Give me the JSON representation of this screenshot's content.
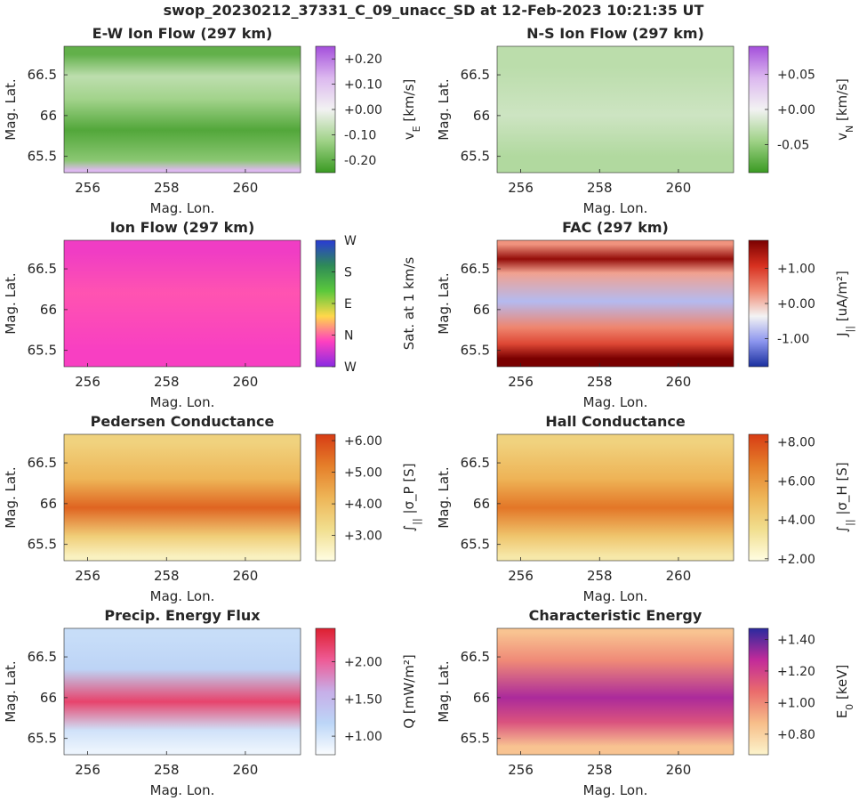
{
  "figure_title": "swop_20230212_37331_C_09_unacc_SD at 12-Feb-2023 10:21:35 UT",
  "chart_data": [
    {
      "type": "heatmap",
      "id": "ew",
      "title": "E-W Ion Flow (297 km)",
      "xlabel": "Mag. Lon.",
      "ylabel": "Mag. Lat.",
      "xticks": [
        "256",
        "258",
        "260"
      ],
      "yticks": [
        "66.5",
        "66",
        "65.5"
      ],
      "xtick_values": [
        256,
        258,
        260
      ],
      "ytick_values": [
        66.5,
        66,
        65.5
      ],
      "xlim": [
        255.4,
        261.4
      ],
      "ylim": [
        65.3,
        66.85
      ],
      "colorbar": {
        "label": "v_E [km/s]",
        "label_main": "v",
        "label_sub": "E",
        "label_rest": " [km/s]",
        "ticks": [
          "+0.20",
          "+0.10",
          "+0.00",
          "-0.10",
          "-0.20"
        ],
        "tick_values": [
          0.2,
          0.1,
          0.0,
          -0.1,
          -0.2
        ],
        "range": [
          -0.25,
          0.25
        ],
        "colors": [
          "#3a9a22",
          "#9fd287",
          "#f2f2f2",
          "#dcb8ef",
          "#a44fdb"
        ]
      },
      "field": {
        "background": "#74b957",
        "bands": [
          {
            "lat": 66.75,
            "value": -0.2
          },
          {
            "lat": 66.48,
            "value": -0.08
          },
          {
            "lat": 66.2,
            "value": -0.12
          },
          {
            "lat": 65.82,
            "value": -0.22
          },
          {
            "lat": 65.45,
            "value": -0.15
          },
          {
            "lat": 65.33,
            "value": 0.12
          }
        ]
      }
    },
    {
      "type": "heatmap",
      "id": "ns",
      "title": "N-S Ion Flow (297 km)",
      "xlabel": "Mag. Lon.",
      "ylabel": "Mag. Lat.",
      "xticks": [
        "256",
        "258",
        "260"
      ],
      "yticks": [
        "66.5",
        "66",
        "65.5"
      ],
      "xtick_values": [
        256,
        258,
        260
      ],
      "ytick_values": [
        66.5,
        66,
        65.5
      ],
      "xlim": [
        255.4,
        261.4
      ],
      "ylim": [
        65.3,
        66.85
      ],
      "colorbar": {
        "label": "v_N [km/s]",
        "label_main": "v",
        "label_sub": "N",
        "label_rest": " [km/s]",
        "ticks": [
          "+0.05",
          "+0.00",
          "-0.05"
        ],
        "tick_values": [
          0.05,
          0.0,
          -0.05
        ],
        "range": [
          -0.09,
          0.09
        ],
        "colors": [
          "#3a9a22",
          "#9fd287",
          "#f2f2f2",
          "#dcb8ef",
          "#a44fdb"
        ]
      },
      "field": {
        "background": "#cfe5c3",
        "bands": [
          {
            "lat": 66.6,
            "value": -0.03
          },
          {
            "lat": 66.0,
            "value": -0.02
          },
          {
            "lat": 65.5,
            "value": -0.035
          }
        ]
      }
    },
    {
      "type": "heatmap",
      "id": "ion",
      "title": "Ion Flow (297 km)",
      "xlabel": "Mag. Lon.",
      "ylabel": "Mag. Lat.",
      "xticks": [
        "256",
        "258",
        "260"
      ],
      "yticks": [
        "66.5",
        "66",
        "65.5"
      ],
      "xtick_values": [
        256,
        258,
        260
      ],
      "ytick_values": [
        66.5,
        66,
        65.5
      ],
      "xlim": [
        255.4,
        261.4
      ],
      "ylim": [
        65.3,
        66.85
      ],
      "colorbar": {
        "label": "Sat. at 1 km/s",
        "label_main": "Sat. at 1 km/s",
        "label_sub": "",
        "label_rest": "",
        "ticks": [
          "W",
          "N",
          "E",
          "S",
          "W"
        ],
        "tick_values": [
          0,
          1,
          2,
          3,
          4
        ],
        "range": [
          0,
          4
        ],
        "colors": [
          "#8a2be2",
          "#ff40c0",
          "#ffd84a",
          "#5ac83c",
          "#2e8b57",
          "#2a3bd6"
        ]
      },
      "field": {
        "background": "#e6e0f7",
        "bands": [
          {
            "lat": 66.7,
            "value": 0.7
          },
          {
            "lat": 66.2,
            "value": 0.9
          },
          {
            "lat": 65.5,
            "value": 0.75
          }
        ]
      }
    },
    {
      "type": "heatmap",
      "id": "fac",
      "title": "FAC (297 km)",
      "xlabel": "Mag. Lon.",
      "ylabel": "Mag. Lat.",
      "xticks": [
        "256",
        "258",
        "260"
      ],
      "yticks": [
        "66.5",
        "66",
        "65.5"
      ],
      "xtick_values": [
        256,
        258,
        260
      ],
      "ytick_values": [
        66.5,
        66,
        65.5
      ],
      "xlim": [
        255.4,
        261.4
      ],
      "ylim": [
        65.3,
        66.85
      ],
      "colorbar": {
        "label": "J_|| [uA/m^2]",
        "label_main": "J",
        "label_sub": "||",
        "label_rest": " [uA/m²]",
        "ticks": [
          "+1.00",
          "+0.00",
          "-1.00"
        ],
        "tick_values": [
          1.0,
          0.0,
          -1.0
        ],
        "range": [
          -1.8,
          1.8
        ],
        "colors": [
          "#1a2f9e",
          "#8c95ee",
          "#f3f3f3",
          "#f08a73",
          "#d7301f",
          "#7a0000"
        ]
      },
      "field": {
        "background": "#f4d8d2",
        "bands": [
          {
            "lat": 66.8,
            "value": 0.3
          },
          {
            "lat": 66.62,
            "value": 1.6
          },
          {
            "lat": 66.45,
            "value": 0.2
          },
          {
            "lat": 66.1,
            "value": -0.8
          },
          {
            "lat": 65.78,
            "value": 0.4
          },
          {
            "lat": 65.58,
            "value": 0.9
          },
          {
            "lat": 65.4,
            "value": 1.8
          }
        ]
      }
    },
    {
      "type": "heatmap",
      "id": "ped",
      "title": "Pedersen Conductance",
      "xlabel": "Mag. Lon.",
      "ylabel": "Mag. Lat.",
      "xticks": [
        "256",
        "258",
        "260"
      ],
      "yticks": [
        "66.5",
        "66",
        "65.5"
      ],
      "xtick_values": [
        256,
        258,
        260
      ],
      "ytick_values": [
        66.5,
        66,
        65.5
      ],
      "xlim": [
        255.4,
        261.4
      ],
      "ylim": [
        65.3,
        66.85
      ],
      "colorbar": {
        "label": "∫|| σ_P [S]",
        "label_main": "∫",
        "label_sub": "||",
        "label_rest": " |σ_P [S]",
        "ticks": [
          "+6.00",
          "+5.00",
          "+4.00",
          "+3.00"
        ],
        "tick_values": [
          6.0,
          5.0,
          4.0,
          3.0
        ],
        "range": [
          2.2,
          6.2
        ],
        "colors": [
          "#fffde2",
          "#f1de8e",
          "#eeb557",
          "#e57f2a",
          "#d73c14"
        ]
      },
      "field": {
        "background": "#f2dc95",
        "bands": [
          {
            "lat": 66.75,
            "value": 3.5
          },
          {
            "lat": 66.3,
            "value": 4.2
          },
          {
            "lat": 65.95,
            "value": 5.6
          },
          {
            "lat": 65.6,
            "value": 3.6
          },
          {
            "lat": 65.35,
            "value": 2.6
          }
        ]
      }
    },
    {
      "type": "heatmap",
      "id": "hall",
      "title": "Hall Conductance",
      "xlabel": "Mag. Lon.",
      "ylabel": "Mag. Lat.",
      "xticks": [
        "256",
        "258",
        "260"
      ],
      "yticks": [
        "66.5",
        "66",
        "65.5"
      ],
      "xtick_values": [
        256,
        258,
        260
      ],
      "ytick_values": [
        66.5,
        66,
        65.5
      ],
      "xlim": [
        255.4,
        261.4
      ],
      "ylim": [
        65.3,
        66.85
      ],
      "colorbar": {
        "label": "∫|| σ_H [S]",
        "label_main": "∫",
        "label_sub": "||",
        "label_rest": " |σ_H [S]",
        "ticks": [
          "+8.00",
          "+6.00",
          "+4.00",
          "+2.00"
        ],
        "tick_values": [
          8.0,
          6.0,
          4.0,
          2.0
        ],
        "range": [
          1.9,
          8.4
        ],
        "colors": [
          "#fffde2",
          "#f1de8e",
          "#eeb557",
          "#e57f2a",
          "#d73c14"
        ]
      },
      "field": {
        "background": "#f2dc95",
        "bands": [
          {
            "lat": 66.75,
            "value": 4.0
          },
          {
            "lat": 66.3,
            "value": 5.2
          },
          {
            "lat": 65.95,
            "value": 7.0
          },
          {
            "lat": 65.6,
            "value": 4.5
          },
          {
            "lat": 65.35,
            "value": 3.0
          }
        ]
      }
    },
    {
      "type": "heatmap",
      "id": "flux",
      "title": "Precip. Energy Flux",
      "xlabel": "Mag. Lon.",
      "ylabel": "Mag. Lat.",
      "xticks": [
        "256",
        "258",
        "260"
      ],
      "yticks": [
        "66.5",
        "66",
        "65.5"
      ],
      "xtick_values": [
        256,
        258,
        260
      ],
      "ytick_values": [
        66.5,
        66,
        65.5
      ],
      "xlim": [
        255.4,
        261.4
      ],
      "ylim": [
        65.3,
        66.85
      ],
      "colorbar": {
        "label": "Q [mW/m^2]",
        "label_main": "Q",
        "label_sub": "",
        "label_rest": " [mW/m²]",
        "ticks": [
          "+2.00",
          "+1.50",
          "+1.00"
        ],
        "tick_values": [
          2.0,
          1.5,
          1.0
        ],
        "range": [
          0.75,
          2.45
        ],
        "colors": [
          "#fbfdff",
          "#bcd6f7",
          "#c7aee8",
          "#ee5b96",
          "#dd2030"
        ]
      },
      "field": {
        "background": "#d4e4f8",
        "bands": [
          {
            "lat": 66.75,
            "value": 1.1
          },
          {
            "lat": 66.35,
            "value": 1.2
          },
          {
            "lat": 65.95,
            "value": 2.2
          },
          {
            "lat": 65.6,
            "value": 1.05
          },
          {
            "lat": 65.35,
            "value": 0.85
          }
        ]
      }
    },
    {
      "type": "heatmap",
      "id": "char",
      "title": "Characteristic Energy",
      "xlabel": "Mag. Lon.",
      "ylabel": "Mag. Lat.",
      "xticks": [
        "256",
        "258",
        "260"
      ],
      "yticks": [
        "66.5",
        "66",
        "65.5"
      ],
      "xtick_values": [
        256,
        258,
        260
      ],
      "ytick_values": [
        66.5,
        66,
        65.5
      ],
      "xlim": [
        255.4,
        261.4
      ],
      "ylim": [
        65.3,
        66.85
      ],
      "colorbar": {
        "label": "E_0 [keV]",
        "label_main": "E",
        "label_sub": "0",
        "label_rest": " [keV]",
        "ticks": [
          "+1.40",
          "+1.20",
          "+1.00",
          "+0.80"
        ],
        "tick_values": [
          1.4,
          1.2,
          1.0,
          0.8
        ],
        "range": [
          0.67,
          1.47
        ],
        "colors": [
          "#fcf4cc",
          "#f7be8a",
          "#ea6c6c",
          "#c22a9a",
          "#2a2a9e"
        ]
      },
      "field": {
        "background": "#ee9a88",
        "bands": [
          {
            "lat": 66.8,
            "value": 0.85
          },
          {
            "lat": 66.45,
            "value": 1.0
          },
          {
            "lat": 66.0,
            "value": 1.3
          },
          {
            "lat": 65.7,
            "value": 1.15
          },
          {
            "lat": 65.4,
            "value": 0.85
          }
        ]
      }
    }
  ]
}
